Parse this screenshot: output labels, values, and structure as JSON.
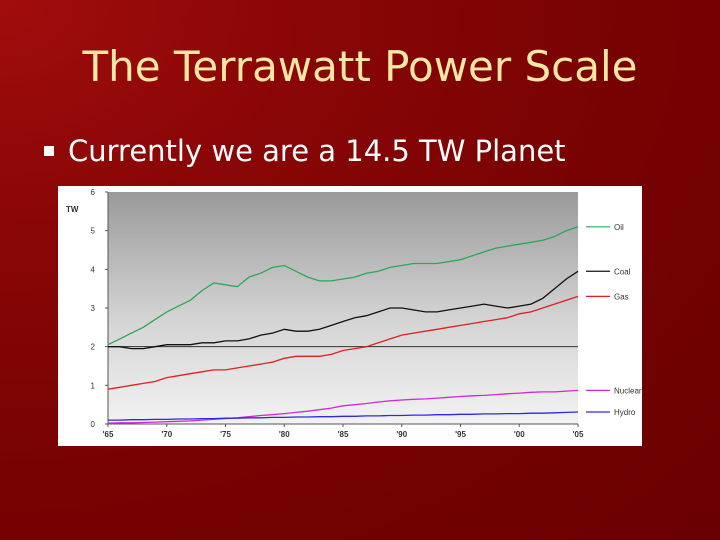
{
  "slide": {
    "title": "The Terrawatt Power Scale",
    "bullet": "Currently we are a 14.5 TW Planet"
  },
  "colors": {
    "background": "#7a0202",
    "title": "#f6e7a6",
    "oil": "#2aa85a",
    "coal": "#111111",
    "gas": "#e02020",
    "nuclear": "#d22ad2",
    "hydro": "#2a2ae0"
  },
  "chart_data": {
    "type": "line",
    "ylabel": "TW",
    "ylim": [
      0,
      6
    ],
    "yticks": [
      0,
      1,
      2,
      3,
      4,
      5,
      6
    ],
    "xlim": [
      1965,
      2005
    ],
    "xticks": [
      "'65",
      "'70",
      "'75",
      "'80",
      "'85",
      "'90",
      "'95",
      "'00",
      "'05"
    ],
    "xtick_years": [
      1965,
      1970,
      1975,
      1980,
      1985,
      1990,
      1995,
      2000,
      2005
    ],
    "reference_line": 2,
    "x": [
      1965,
      1966,
      1967,
      1968,
      1969,
      1970,
      1971,
      1972,
      1973,
      1974,
      1975,
      1976,
      1977,
      1978,
      1979,
      1980,
      1981,
      1982,
      1983,
      1984,
      1985,
      1986,
      1987,
      1988,
      1989,
      1990,
      1991,
      1992,
      1993,
      1994,
      1995,
      1996,
      1997,
      1998,
      1999,
      2000,
      2001,
      2002,
      2003,
      2004,
      2005
    ],
    "series": [
      {
        "name": "Oil",
        "color": "#2aa85a",
        "values": [
          2.05,
          2.2,
          2.35,
          2.5,
          2.7,
          2.9,
          3.05,
          3.2,
          3.45,
          3.65,
          3.6,
          3.55,
          3.8,
          3.9,
          4.05,
          4.1,
          3.95,
          3.8,
          3.7,
          3.7,
          3.75,
          3.8,
          3.9,
          3.95,
          4.05,
          4.1,
          4.15,
          4.15,
          4.15,
          4.2,
          4.25,
          4.35,
          4.45,
          4.55,
          4.6,
          4.65,
          4.7,
          4.75,
          4.85,
          5.0,
          5.1
        ]
      },
      {
        "name": "Coal",
        "color": "#111111",
        "values": [
          2.0,
          2.0,
          1.95,
          1.95,
          2.0,
          2.05,
          2.05,
          2.05,
          2.1,
          2.1,
          2.15,
          2.15,
          2.2,
          2.3,
          2.35,
          2.45,
          2.4,
          2.4,
          2.45,
          2.55,
          2.65,
          2.75,
          2.8,
          2.9,
          3.0,
          3.0,
          2.95,
          2.9,
          2.9,
          2.95,
          3.0,
          3.05,
          3.1,
          3.05,
          3.0,
          3.05,
          3.1,
          3.25,
          3.5,
          3.75,
          3.95
        ]
      },
      {
        "name": "Gas",
        "color": "#e02020",
        "values": [
          0.9,
          0.95,
          1.0,
          1.05,
          1.1,
          1.2,
          1.25,
          1.3,
          1.35,
          1.4,
          1.4,
          1.45,
          1.5,
          1.55,
          1.6,
          1.7,
          1.75,
          1.75,
          1.75,
          1.8,
          1.9,
          1.95,
          2.0,
          2.1,
          2.2,
          2.3,
          2.35,
          2.4,
          2.45,
          2.5,
          2.55,
          2.6,
          2.65,
          2.7,
          2.75,
          2.85,
          2.9,
          3.0,
          3.1,
          3.2,
          3.3
        ]
      },
      {
        "name": "Nuclear",
        "color": "#d22ad2",
        "values": [
          0.02,
          0.03,
          0.03,
          0.04,
          0.05,
          0.06,
          0.07,
          0.08,
          0.1,
          0.12,
          0.14,
          0.16,
          0.19,
          0.22,
          0.24,
          0.27,
          0.3,
          0.33,
          0.37,
          0.41,
          0.47,
          0.5,
          0.53,
          0.57,
          0.6,
          0.62,
          0.64,
          0.65,
          0.67,
          0.69,
          0.71,
          0.73,
          0.74,
          0.76,
          0.78,
          0.8,
          0.82,
          0.83,
          0.83,
          0.85,
          0.87
        ]
      },
      {
        "name": "Hydro",
        "color": "#2a2ae0",
        "values": [
          0.1,
          0.1,
          0.11,
          0.11,
          0.12,
          0.12,
          0.13,
          0.13,
          0.14,
          0.14,
          0.15,
          0.15,
          0.16,
          0.16,
          0.17,
          0.17,
          0.18,
          0.18,
          0.19,
          0.19,
          0.2,
          0.2,
          0.21,
          0.21,
          0.22,
          0.22,
          0.23,
          0.23,
          0.24,
          0.24,
          0.25,
          0.25,
          0.26,
          0.26,
          0.27,
          0.27,
          0.28,
          0.28,
          0.29,
          0.3,
          0.31
        ]
      }
    ]
  }
}
